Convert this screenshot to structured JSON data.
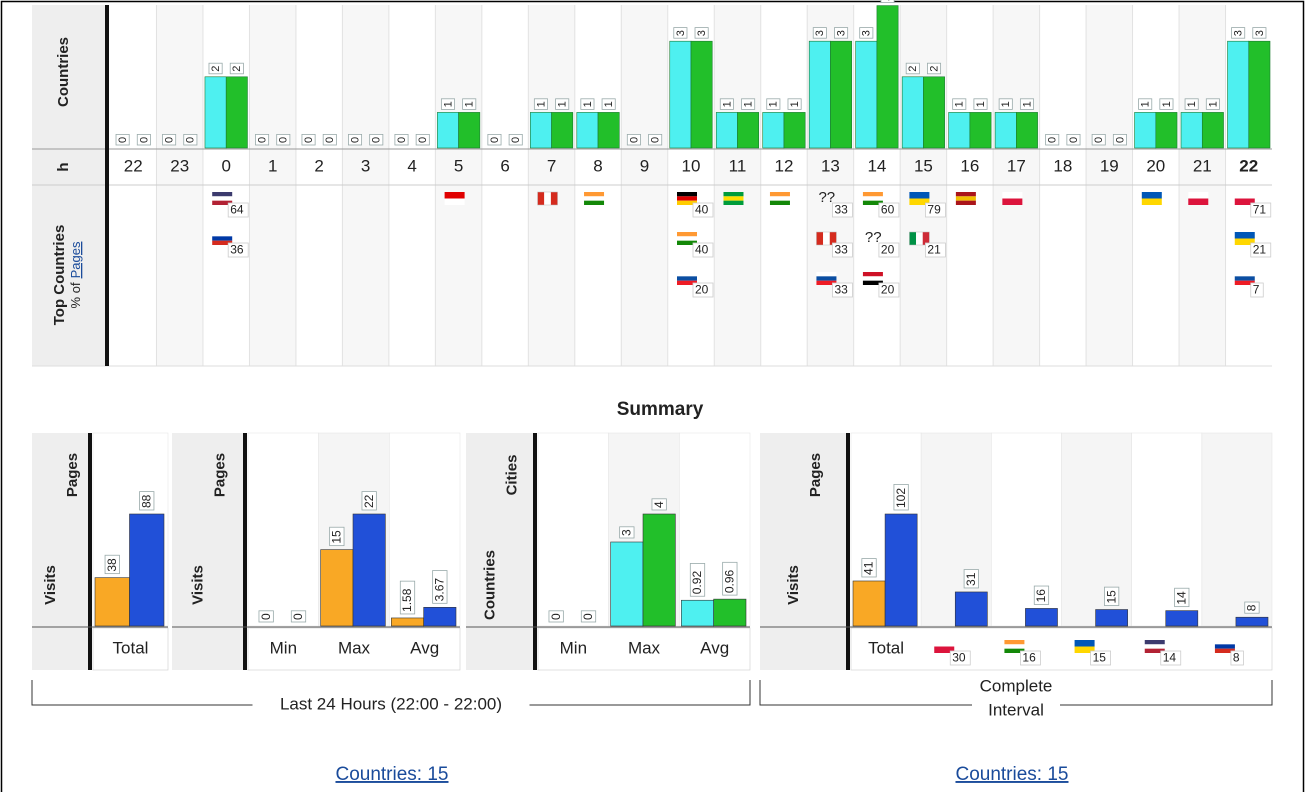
{
  "hourly": {
    "row_labels": {
      "countries": "Countries",
      "hours": "h",
      "top_countries": "Top Countries",
      "top_sub_prefix": "% of",
      "top_sub_link": "Pages"
    },
    "hours": [
      22,
      23,
      0,
      1,
      2,
      3,
      4,
      5,
      6,
      7,
      8,
      9,
      10,
      11,
      12,
      13,
      14,
      15,
      16,
      17,
      18,
      19,
      20,
      21,
      22
    ],
    "series": [
      {
        "color": "#4ef0f0",
        "values": [
          0,
          0,
          2,
          0,
          0,
          0,
          0,
          1,
          0,
          1,
          1,
          0,
          3,
          1,
          1,
          3,
          3,
          2,
          1,
          1,
          0,
          0,
          1,
          1,
          3
        ]
      },
      {
        "color": "#22bf2a",
        "values": [
          0,
          0,
          2,
          0,
          0,
          0,
          0,
          1,
          0,
          1,
          1,
          0,
          3,
          1,
          1,
          3,
          4,
          2,
          1,
          1,
          0,
          0,
          1,
          1,
          3
        ]
      }
    ],
    "top_countries": [
      [],
      [],
      [
        {
          "flag": [
            "#3c3b6e",
            "#fff",
            "#b22234"
          ],
          "value": 64
        },
        {
          "flag": [
            "#fff",
            "#0039a6",
            "#d52b1e"
          ],
          "value": 36
        }
      ],
      [],
      [],
      [],
      [],
      [
        {
          "flag": [
            "#e00000",
            "#fff"
          ]
        }
      ],
      [],
      [
        {
          "flag": [
            "#d52b1e",
            "#fff",
            "#d52b1e"
          ],
          "vertical": true
        }
      ],
      [
        {
          "flag": [
            "#ff9933",
            "#fff",
            "#138808"
          ]
        }
      ],
      [],
      [
        {
          "flag": [
            "#000",
            "#dd0000",
            "#ffcc00"
          ],
          "value": 40
        },
        {
          "flag": [
            "#ff9933",
            "#fff",
            "#138808"
          ],
          "value": 40
        },
        {
          "flag": [
            "#fff",
            "#0b4ea2",
            "#ee1c25"
          ],
          "value": 20
        }
      ],
      [
        {
          "flag": [
            "#009c3b",
            "#ffdf00",
            "#009c3b"
          ]
        }
      ],
      [
        {
          "flag": [
            "#ff9933",
            "#fff",
            "#138808"
          ]
        }
      ],
      [
        {
          "label": "??",
          "value": 33
        },
        {
          "flag": [
            "#d52b1e",
            "#fff",
            "#d52b1e"
          ],
          "vertical": true,
          "value": 33
        },
        {
          "flag": [
            "#fff",
            "#0b4ea2",
            "#ee1c25"
          ],
          "value": 33
        }
      ],
      [
        {
          "flag": [
            "#ff9933",
            "#fff",
            "#138808"
          ],
          "value": 60
        },
        {
          "label": "??",
          "value": 20
        },
        {
          "flag": [
            "#ce1126",
            "#fff",
            "#000"
          ],
          "value": 20
        }
      ],
      [
        {
          "flag": [
            "#0057b7",
            "#ffd700"
          ],
          "value": 79
        },
        {
          "flag": [
            "#009246",
            "#fff",
            "#ce2b37"
          ],
          "vertical": true,
          "value": 21
        }
      ],
      [
        {
          "flag": [
            "#aa151b",
            "#f1bf00",
            "#aa151b"
          ]
        }
      ],
      [
        {
          "flag": [
            "#fff",
            "#dc143c"
          ]
        }
      ],
      [],
      [],
      [
        {
          "flag": [
            "#0057b7",
            "#ffd700"
          ]
        }
      ],
      [
        {
          "flag": [
            "#fff",
            "#dc143c"
          ]
        }
      ],
      [
        {
          "flag": [
            "#fff",
            "#dc143c"
          ],
          "value": 71
        },
        {
          "flag": [
            "#0057b7",
            "#ffd700"
          ],
          "value": 21
        },
        {
          "flag": [
            "#fff",
            "#0b4ea2",
            "#ee1c25"
          ],
          "value": 7
        }
      ]
    ]
  },
  "summary": {
    "title": "Summary",
    "panels": [
      {
        "legend": [
          "Visits",
          "Pages"
        ],
        "categories": [
          "Total"
        ],
        "series": [
          {
            "color": "#f9a825",
            "values": [
              38
            ]
          },
          {
            "color": "#2150d8",
            "values": [
              88
            ]
          }
        ]
      },
      {
        "legend": [
          "Visits",
          "Pages"
        ],
        "categories": [
          "Min",
          "Max",
          "Avg"
        ],
        "series": [
          {
            "color": "#f9a825",
            "values": [
              0,
              15,
              1.58
            ]
          },
          {
            "color": "#2150d8",
            "values": [
              0,
              22,
              3.67
            ]
          }
        ]
      },
      {
        "legend": [
          "Countries",
          "Cities"
        ],
        "categories": [
          "Min",
          "Max",
          "Avg"
        ],
        "series": [
          {
            "color": "#4ef0f0",
            "values": [
              0,
              3,
              0.92
            ]
          },
          {
            "color": "#22bf2a",
            "values": [
              0,
              4,
              0.96
            ]
          }
        ]
      },
      {
        "legend": [
          "Visits",
          "Pages"
        ],
        "categories": [
          "Total",
          {
            "flag": [
              "#fff",
              "#dc143c"
            ],
            "value": 30
          },
          {
            "flag": [
              "#ff9933",
              "#fff",
              "#138808"
            ],
            "value": 16
          },
          {
            "flag": [
              "#0057b7",
              "#ffd700"
            ],
            "value": 15
          },
          {
            "flag": [
              "#3c3b6e",
              "#fff",
              "#b22234"
            ],
            "value": 14
          },
          {
            "flag": [
              "#fff",
              "#0039a6",
              "#d52b1e"
            ],
            "value": 8
          }
        ],
        "series": [
          {
            "color": "#f9a825",
            "values": [
              41,
              null,
              null,
              null,
              null,
              null
            ]
          },
          {
            "color": "#2150d8",
            "values": [
              102,
              31,
              16,
              15,
              14,
              8
            ]
          }
        ]
      }
    ]
  },
  "intervals": [
    {
      "label_lines": [
        "Last 24 Hours (22:00 - 22:00)"
      ]
    },
    {
      "label_lines": [
        "Complete",
        "Interval"
      ]
    }
  ],
  "links": [
    "Countries: 15",
    "Countries: 15"
  ]
}
